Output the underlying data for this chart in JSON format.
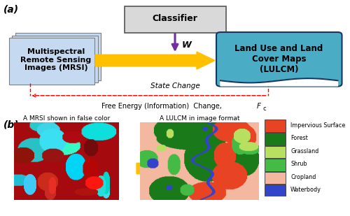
{
  "title_a": "(a)",
  "title_b": "(b)",
  "classifier_box": {
    "text": "Classifier",
    "facecolor": "#d9d9d9",
    "edgecolor": "#555555"
  },
  "mrsi_box": {
    "text": "Multispectral\nRemote Sensing\nImages (MRSI)",
    "facecolor": "#c5d9f1",
    "edgecolor": "#7f7f7f"
  },
  "lulcm_box": {
    "text": "Land Use and Land\nCover Maps\n(LULCM)",
    "facecolor": "#4bacc6",
    "edgecolor": "#17375e"
  },
  "arrow_color": "#ffc000",
  "purple_arrow_color": "#7030a0",
  "dashed_arrow_color": "#ff0000",
  "state_change_text": "State Change",
  "free_energy_text": "Free Energy (Information)  Change, ",
  "free_energy_italic": "F",
  "free_energy_sub": "c",
  "W_label": "W",
  "mrsi_caption": "A MRSI shown in false color",
  "lulcm_caption": "A LULCM in image format",
  "legend_items": [
    {
      "label": "Impervious Surface",
      "color": "#e84424"
    },
    {
      "label": "Forest",
      "color": "#1a7a1a"
    },
    {
      "label": "Grassland",
      "color": "#b8e060"
    },
    {
      "label": "Shrub",
      "color": "#44bb44"
    },
    {
      "label": "Cropland",
      "color": "#f4b8a0"
    },
    {
      "label": "Waterbody",
      "color": "#3344cc"
    }
  ],
  "bg_color": "#ffffff"
}
